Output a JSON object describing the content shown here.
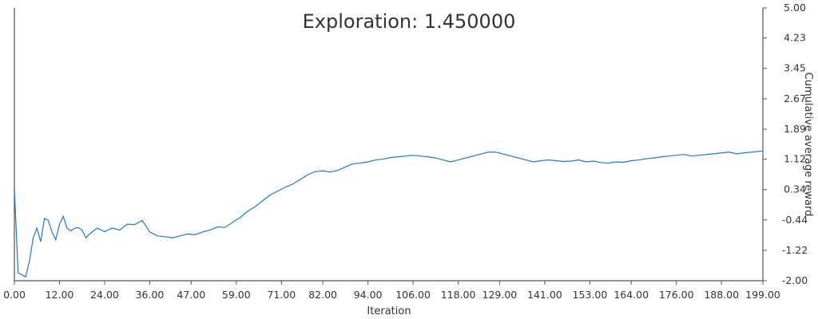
{
  "chart_data": {
    "type": "line",
    "title": "Exploration: 1.450000",
    "xlabel": "Iteration",
    "ylabel": "Cumulative average reward",
    "xlim": [
      0,
      199
    ],
    "ylim": [
      -2.0,
      5.0
    ],
    "x_ticks": [
      "0.00",
      "12.00",
      "24.00",
      "36.00",
      "47.00",
      "59.00",
      "71.00",
      "82.00",
      "94.00",
      "106.00",
      "118.00",
      "129.00",
      "141.00",
      "153.00",
      "164.00",
      "176.00",
      "188.00",
      "199.00"
    ],
    "y_ticks": [
      "5.00",
      "4.23",
      "3.45",
      "2.67",
      "1.89",
      "1.12",
      "0.34",
      "-0.44",
      "-1.22",
      "-2.00"
    ],
    "y_axis_side": "right",
    "grid": false,
    "legend": "none",
    "line_color": "#1f77d4",
    "series": [
      {
        "x": [
          0,
          1,
          2,
          3,
          4,
          5,
          6,
          7,
          8,
          9,
          10,
          11,
          12,
          13,
          14,
          15,
          16,
          17,
          18,
          19,
          20,
          22,
          24,
          26,
          28,
          30,
          32,
          34,
          36,
          38,
          40,
          42,
          44,
          46,
          48,
          50,
          52,
          54,
          56,
          58,
          60,
          62,
          64,
          66,
          68,
          70,
          72,
          74,
          76,
          78,
          80,
          82,
          84,
          86,
          88,
          90,
          92,
          94,
          96,
          98,
          100,
          102,
          104,
          106,
          108,
          110,
          112,
          114,
          116,
          118,
          120,
          122,
          124,
          126,
          128,
          130,
          132,
          134,
          136,
          138,
          140,
          142,
          144,
          146,
          148,
          150,
          152,
          154,
          156,
          158,
          160,
          162,
          164,
          166,
          168,
          170,
          172,
          174,
          176,
          178,
          180,
          182,
          184,
          186,
          188,
          190,
          192,
          194,
          196,
          199
        ],
        "y": [
          0.35,
          -1.8,
          -1.85,
          -1.9,
          -1.5,
          -0.9,
          -0.65,
          -1.0,
          -0.4,
          -0.45,
          -0.75,
          -0.95,
          -0.55,
          -0.35,
          -0.65,
          -0.72,
          -0.65,
          -0.64,
          -0.7,
          -0.9,
          -0.8,
          -0.65,
          -0.74,
          -0.65,
          -0.7,
          -0.55,
          -0.56,
          -0.45,
          -0.75,
          -0.85,
          -0.87,
          -0.9,
          -0.85,
          -0.8,
          -0.82,
          -0.75,
          -0.7,
          -0.62,
          -0.63,
          -0.5,
          -0.38,
          -0.22,
          -0.1,
          0.05,
          0.2,
          0.3,
          0.4,
          0.48,
          0.6,
          0.72,
          0.8,
          0.82,
          0.79,
          0.83,
          0.92,
          1.0,
          1.02,
          1.05,
          1.1,
          1.12,
          1.16,
          1.18,
          1.2,
          1.22,
          1.2,
          1.18,
          1.15,
          1.1,
          1.05,
          1.1,
          1.15,
          1.2,
          1.25,
          1.3,
          1.3,
          1.25,
          1.2,
          1.15,
          1.1,
          1.05,
          1.08,
          1.1,
          1.08,
          1.06,
          1.07,
          1.1,
          1.05,
          1.07,
          1.03,
          1.02,
          1.05,
          1.04,
          1.08,
          1.1,
          1.13,
          1.15,
          1.18,
          1.2,
          1.22,
          1.24,
          1.2,
          1.22,
          1.24,
          1.26,
          1.28,
          1.3,
          1.26,
          1.28,
          1.3,
          1.33
        ]
      }
    ]
  }
}
